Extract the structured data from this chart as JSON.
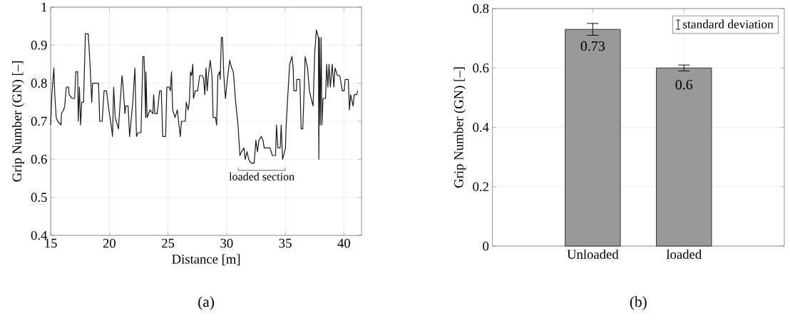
{
  "chart_data": [
    {
      "type": "line",
      "xlabel": "Distance [m]",
      "ylabel": "Grip Number (GN) [–]",
      "series": [
        {
          "color": "#1a1a1a",
          "x": [
            15.0,
            15.1,
            15.27,
            15.35,
            15.47,
            15.6,
            15.88,
            15.92,
            16.1,
            16.2,
            16.33,
            16.53,
            16.57,
            16.84,
            17.04,
            17.14,
            17.3,
            17.35,
            17.45,
            17.55,
            17.65,
            17.8,
            17.96,
            18.2,
            18.37,
            18.5,
            18.57,
            19.08,
            19.18,
            19.39,
            19.55,
            19.76,
            19.96,
            20.2,
            20.27,
            20.37,
            20.5,
            20.78,
            20.86,
            21.08,
            21.18,
            21.33,
            21.4,
            21.6,
            21.73,
            21.88,
            22.0,
            22.18,
            22.31,
            22.45,
            22.7,
            22.86,
            22.96,
            23.1,
            23.12,
            23.22,
            23.47,
            23.71,
            23.78,
            23.88,
            24.08,
            24.29,
            24.43,
            24.55,
            24.8,
            24.9,
            25.1,
            25.2,
            25.3,
            25.4,
            25.6,
            25.8,
            25.9,
            26.05,
            26.15,
            26.48,
            26.56,
            26.72,
            26.82,
            26.92,
            27.02,
            27.12,
            27.17,
            27.33,
            27.53,
            27.7,
            27.94,
            28.04,
            28.14,
            28.24,
            28.34,
            28.44,
            28.6,
            28.75,
            28.85,
            29.05,
            29.15,
            29.25,
            29.4,
            29.45,
            29.55,
            29.65,
            29.76,
            29.9,
            30.06,
            30.26,
            30.43,
            30.57,
            30.77,
            30.97,
            31.13,
            31.27,
            31.48,
            31.58,
            31.74,
            31.88,
            32.08,
            32.35,
            32.49,
            32.63,
            32.75,
            32.96,
            33.1,
            33.2,
            33.7,
            33.9,
            34.17,
            34.25,
            34.37,
            34.57,
            34.65,
            34.77,
            35.02,
            35.06,
            35.2,
            35.37,
            35.57,
            35.67,
            35.73,
            35.94,
            35.98,
            36.24,
            36.35,
            36.49,
            36.63,
            36.69,
            36.9,
            37.06,
            37.2,
            37.37,
            37.51,
            37.65,
            37.82,
            37.86,
            37.92,
            37.98,
            38.06,
            38.12,
            38.22,
            38.43,
            38.53,
            38.63,
            38.73,
            38.84,
            39.0,
            39.14,
            39.24,
            39.45,
            39.65,
            39.86,
            40.02,
            40.1,
            40.37,
            40.47,
            40.57,
            40.78,
            40.88,
            41.08,
            41.18
          ],
          "values": [
            0.69,
            0.77,
            0.84,
            0.77,
            0.71,
            0.7,
            0.69,
            0.72,
            0.73,
            0.74,
            0.79,
            0.79,
            0.77,
            0.76,
            0.76,
            0.83,
            0.83,
            0.7,
            0.79,
            0.69,
            0.75,
            0.75,
            0.93,
            0.93,
            0.84,
            0.75,
            0.8,
            0.8,
            0.7,
            0.7,
            0.78,
            0.78,
            0.73,
            0.68,
            0.66,
            0.79,
            0.71,
            0.68,
            0.72,
            0.82,
            0.79,
            0.72,
            0.74,
            0.74,
            0.66,
            0.71,
            0.75,
            0.84,
            0.66,
            0.67,
            0.67,
            0.87,
            0.87,
            0.71,
            0.83,
            0.71,
            0.73,
            0.72,
            0.77,
            0.72,
            0.72,
            0.78,
            0.78,
            0.66,
            0.66,
            0.79,
            0.79,
            0.78,
            0.83,
            0.73,
            0.71,
            0.73,
            0.7,
            0.66,
            0.7,
            0.7,
            0.75,
            0.73,
            0.75,
            0.83,
            0.82,
            0.85,
            0.76,
            0.78,
            0.78,
            0.82,
            0.82,
            0.81,
            0.77,
            0.84,
            0.78,
            0.82,
            0.86,
            0.82,
            0.71,
            0.71,
            0.69,
            0.82,
            0.83,
            0.81,
            0.92,
            0.92,
            0.82,
            0.76,
            0.81,
            0.86,
            0.84,
            0.83,
            0.75,
            0.69,
            0.61,
            0.62,
            0.63,
            0.6,
            0.62,
            0.6,
            0.59,
            0.59,
            0.65,
            0.62,
            0.65,
            0.66,
            0.65,
            0.63,
            0.63,
            0.61,
            0.61,
            0.69,
            0.63,
            0.63,
            0.69,
            0.6,
            0.63,
            0.68,
            0.76,
            0.85,
            0.87,
            0.84,
            0.78,
            0.78,
            0.81,
            0.81,
            0.68,
            0.68,
            0.8,
            0.87,
            0.84,
            0.78,
            0.76,
            0.74,
            0.88,
            0.94,
            0.92,
            0.6,
            0.92,
            0.69,
            0.92,
            0.69,
            0.76,
            0.76,
            0.85,
            0.79,
            0.85,
            0.79,
            0.85,
            0.79,
            0.84,
            0.82,
            0.82,
            0.78,
            0.78,
            0.81,
            0.81,
            0.73,
            0.77,
            0.74,
            0.77,
            0.77,
            0.78
          ]
        }
      ],
      "xlim": [
        15,
        41.5
      ],
      "ylim": [
        0.4,
        1
      ],
      "xticks": [
        15,
        20,
        25,
        30,
        35,
        40
      ],
      "yticks": [
        0.4,
        0.5,
        0.6,
        0.7,
        0.8,
        0.9,
        1
      ],
      "grid": true,
      "line_style": "solid",
      "annotations": [
        "(a)",
        "loaded section"
      ]
    },
    {
      "type": "bar",
      "ylabel": "Grip Number (GN) [–]",
      "categories": [
        "Unloaded",
        "loaded"
      ],
      "series": [
        {
          "name": "standard deviation",
          "color": "#999999",
          "values": [
            0.73,
            0.6
          ],
          "errors": [
            0.02,
            0.01
          ]
        }
      ],
      "ylim": [
        0,
        0.8
      ],
      "yticks": [
        0,
        0.2,
        0.4,
        0.6,
        0.8
      ],
      "grid": true,
      "legend": "top right",
      "data_labels": true,
      "annotations": [
        "(b)"
      ]
    }
  ]
}
